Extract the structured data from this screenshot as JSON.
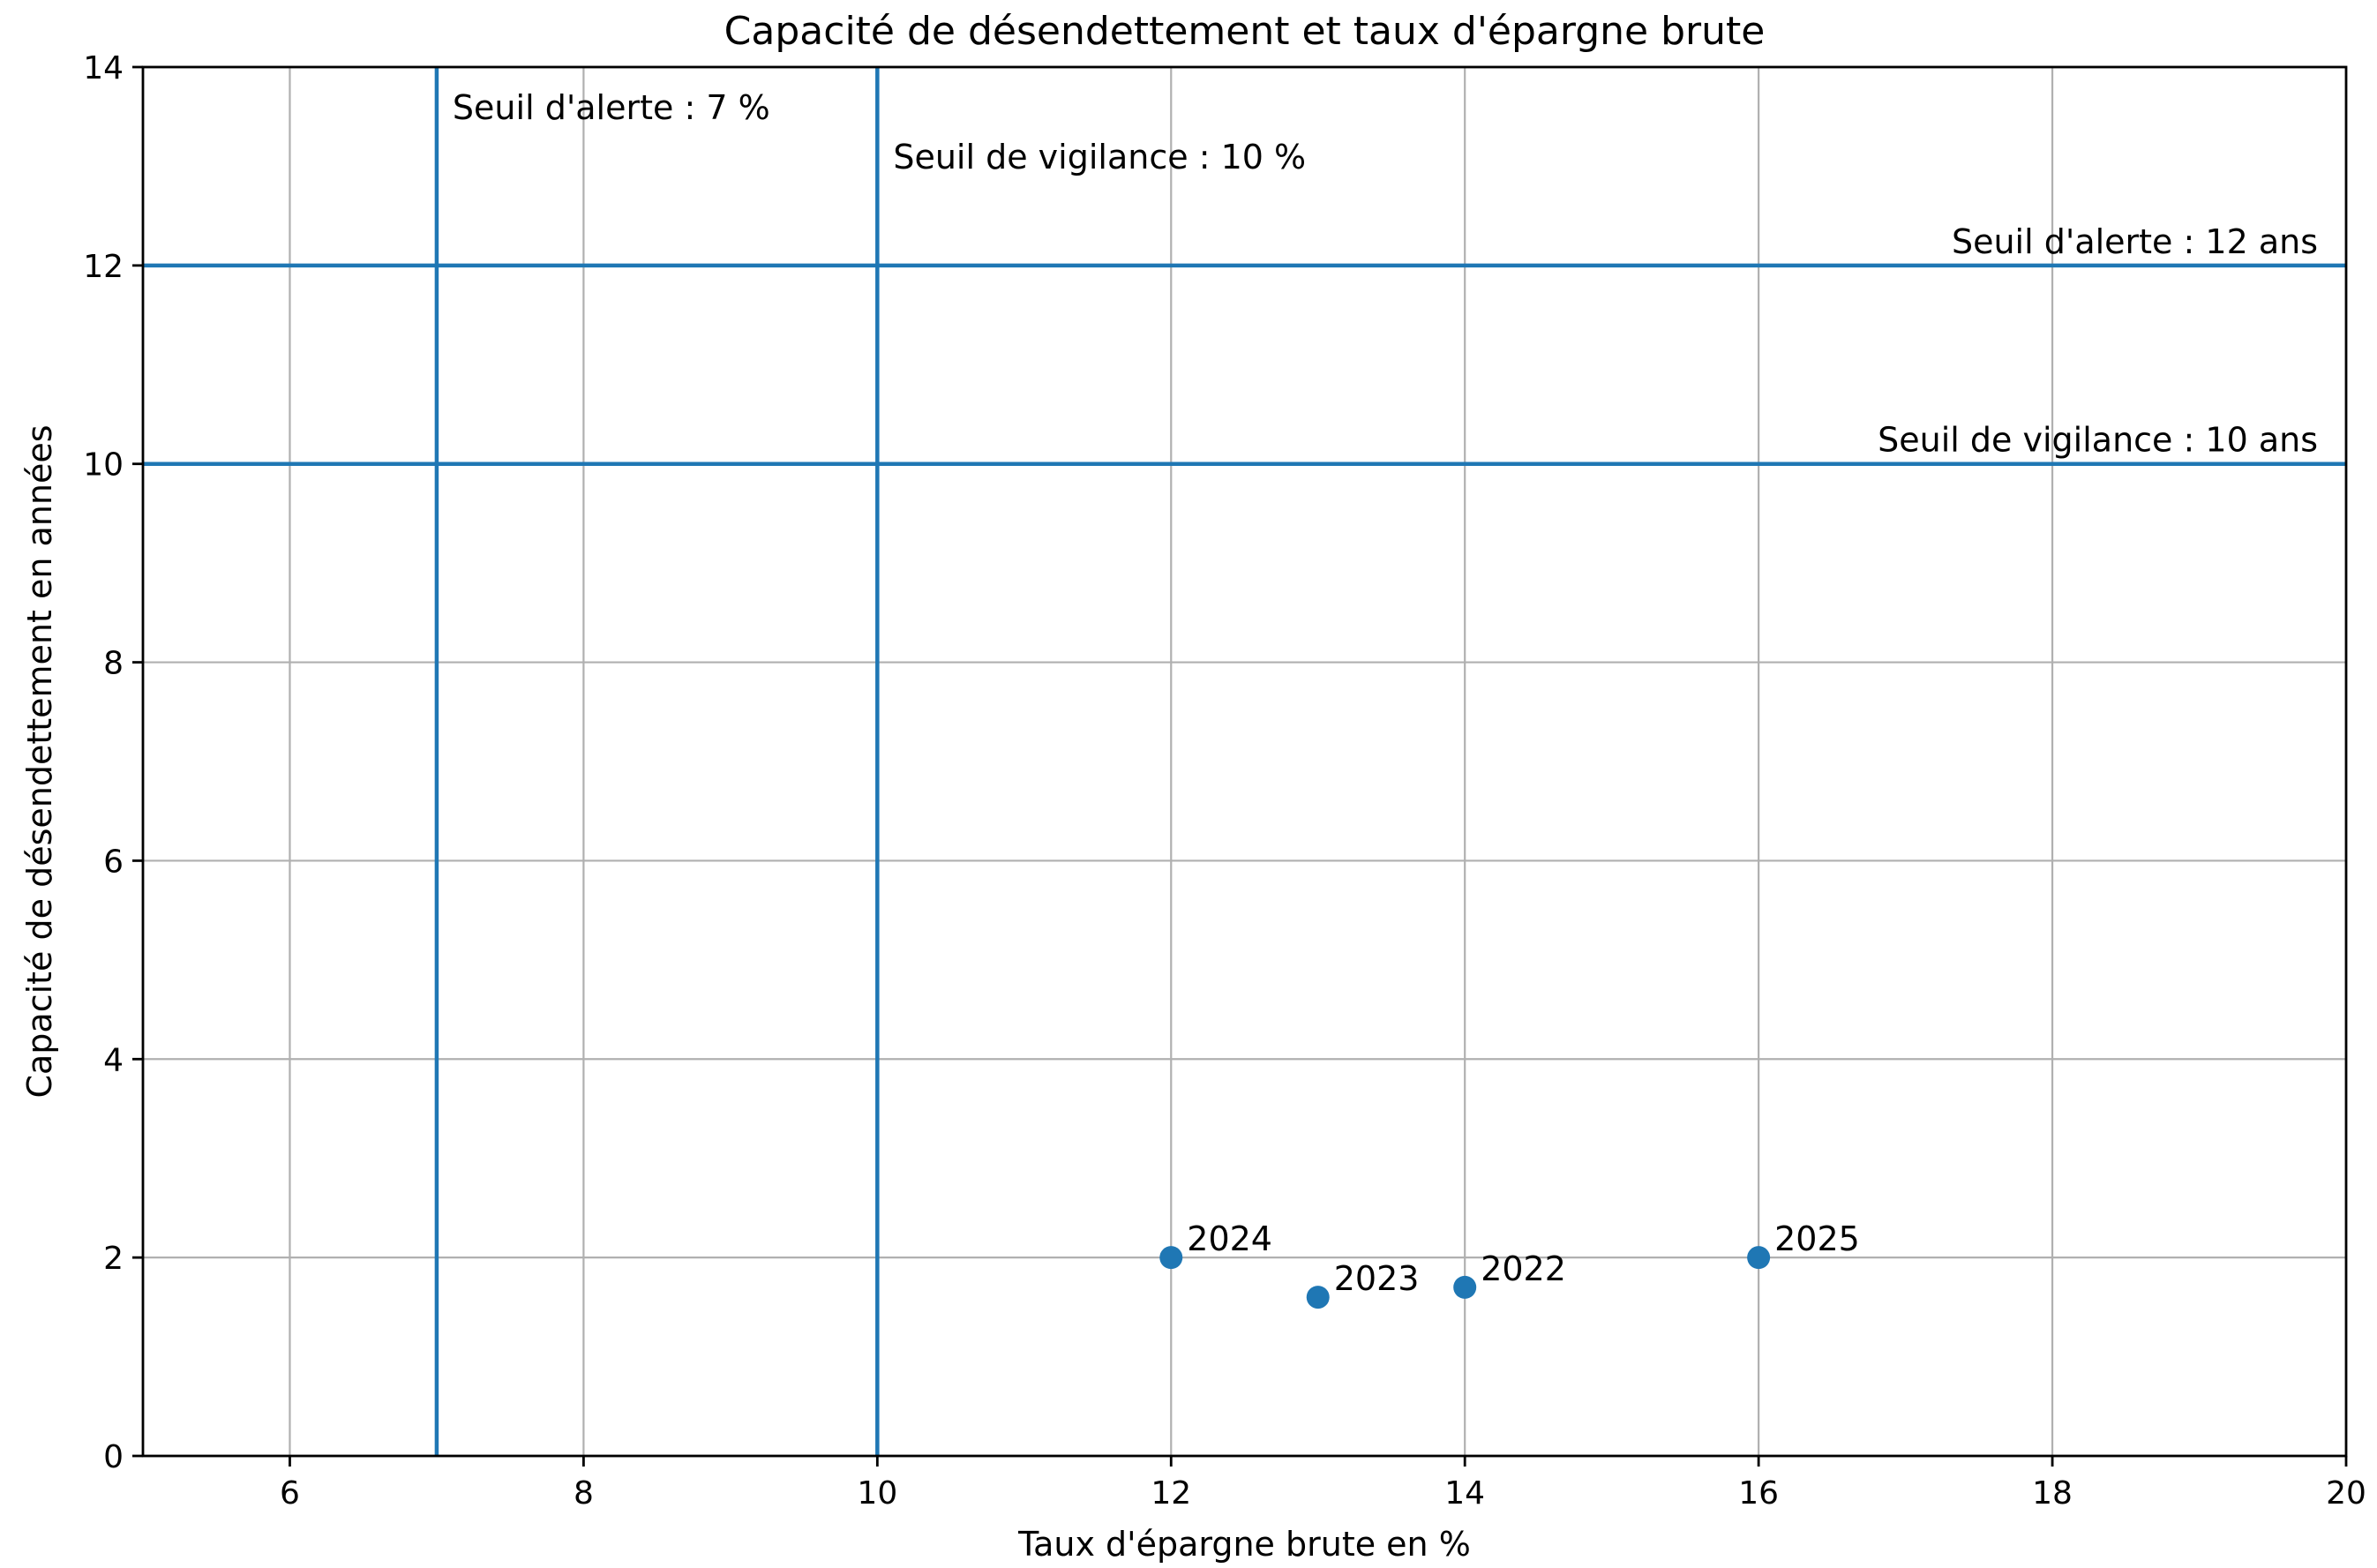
{
  "chart_data": {
    "type": "scatter",
    "title": "Capacité de désendettement et taux d'épargne brute",
    "xlabel": "Taux d'épargne brute en %",
    "ylabel": "Capacité de désendettement en années",
    "xlim": [
      5,
      20
    ],
    "ylim": [
      0,
      14
    ],
    "xticks": [
      6,
      8,
      10,
      12,
      14,
      16,
      18,
      20
    ],
    "yticks": [
      0,
      2,
      4,
      6,
      8,
      10,
      12,
      14
    ],
    "grid": true,
    "point_color": "#1f77b4",
    "line_color": "#1f77b4",
    "points": [
      {
        "label": "2022",
        "x": 14,
        "y": 1.7
      },
      {
        "label": "2023",
        "x": 13,
        "y": 1.6
      },
      {
        "label": "2024",
        "x": 12,
        "y": 2.0
      },
      {
        "label": "2025",
        "x": 16,
        "y": 2.0
      }
    ],
    "thresholds": [
      {
        "orientation": "vertical",
        "value": 7,
        "label": "Seuil d'alerte : 7 %",
        "label_y": 13.6
      },
      {
        "orientation": "vertical",
        "value": 10,
        "label": "Seuil de vigilance : 10 %",
        "label_y": 13.1
      },
      {
        "orientation": "horizontal",
        "value": 12,
        "label": "Seuil d'alerte : 12 ans"
      },
      {
        "orientation": "horizontal",
        "value": 10,
        "label": "Seuil de vigilance : 10 ans"
      }
    ]
  }
}
